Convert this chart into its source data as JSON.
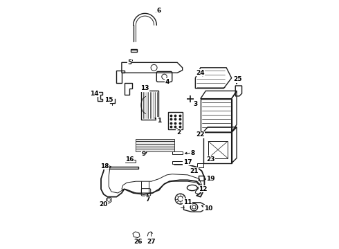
{
  "bg_color": "#ffffff",
  "line_color": "#1a1a1a",
  "fig_width": 4.9,
  "fig_height": 3.6,
  "dpi": 100,
  "callouts": {
    "1": {
      "lpos": [
        0.4,
        0.535
      ],
      "tpos": [
        0.375,
        0.55
      ]
    },
    "2": {
      "lpos": [
        0.475,
        0.49
      ],
      "tpos": [
        0.465,
        0.515
      ]
    },
    "3": {
      "lpos": [
        0.54,
        0.6
      ],
      "tpos": [
        0.525,
        0.615
      ]
    },
    "4": {
      "lpos": [
        0.43,
        0.685
      ],
      "tpos": [
        0.42,
        0.705
      ]
    },
    "5": {
      "lpos": [
        0.285,
        0.76
      ],
      "tpos": [
        0.305,
        0.775
      ]
    },
    "6": {
      "lpos": [
        0.4,
        0.96
      ],
      "tpos": [
        0.38,
        0.95
      ]
    },
    "7": {
      "lpos": [
        0.355,
        0.23
      ],
      "tpos": [
        0.355,
        0.26
      ]
    },
    "8": {
      "lpos": [
        0.53,
        0.41
      ],
      "tpos": [
        0.49,
        0.408
      ]
    },
    "9": {
      "lpos": [
        0.34,
        0.405
      ],
      "tpos": [
        0.36,
        0.418
      ]
    },
    "10": {
      "lpos": [
        0.59,
        0.195
      ],
      "tpos": [
        0.555,
        0.21
      ]
    },
    "11": {
      "lpos": [
        0.51,
        0.22
      ],
      "tpos": [
        0.49,
        0.235
      ]
    },
    "12": {
      "lpos": [
        0.57,
        0.27
      ],
      "tpos": [
        0.54,
        0.278
      ]
    },
    "13": {
      "lpos": [
        0.345,
        0.66
      ],
      "tpos": [
        0.36,
        0.68
      ]
    },
    "14": {
      "lpos": [
        0.148,
        0.64
      ],
      "tpos": [
        0.168,
        0.628
      ]
    },
    "15": {
      "lpos": [
        0.205,
        0.615
      ],
      "tpos": [
        0.218,
        0.608
      ]
    },
    "16": {
      "lpos": [
        0.285,
        0.385
      ],
      "tpos": [
        0.31,
        0.378
      ]
    },
    "17": {
      "lpos": [
        0.51,
        0.375
      ],
      "tpos": [
        0.485,
        0.372
      ]
    },
    "18": {
      "lpos": [
        0.188,
        0.358
      ],
      "tpos": [
        0.225,
        0.355
      ]
    },
    "19": {
      "lpos": [
        0.6,
        0.31
      ],
      "tpos": [
        0.568,
        0.308
      ]
    },
    "20": {
      "lpos": [
        0.185,
        0.21
      ],
      "tpos": [
        0.2,
        0.228
      ]
    },
    "21": {
      "lpos": [
        0.535,
        0.34
      ],
      "tpos": [
        0.548,
        0.355
      ]
    },
    "22": {
      "lpos": [
        0.558,
        0.48
      ],
      "tpos": [
        0.565,
        0.49
      ]
    },
    "23": {
      "lpos": [
        0.6,
        0.385
      ],
      "tpos": [
        0.615,
        0.405
      ]
    },
    "24": {
      "lpos": [
        0.558,
        0.72
      ],
      "tpos": [
        0.575,
        0.7
      ]
    },
    "25": {
      "lpos": [
        0.705,
        0.695
      ],
      "tpos": [
        0.695,
        0.668
      ]
    },
    "26": {
      "lpos": [
        0.318,
        0.065
      ],
      "tpos": [
        0.318,
        0.085
      ]
    },
    "27": {
      "lpos": [
        0.368,
        0.065
      ],
      "tpos": [
        0.368,
        0.085
      ]
    }
  }
}
